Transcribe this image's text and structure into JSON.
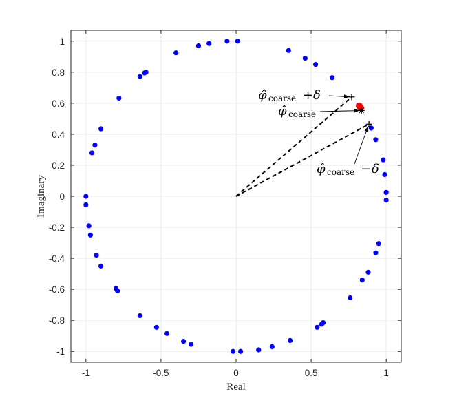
{
  "chart_data": {
    "type": "scatter",
    "title": "",
    "xlabel": "Real",
    "ylabel": "Imaginary",
    "xlim": [
      -1.1,
      1.1
    ],
    "ylim": [
      -1.07,
      1.07
    ],
    "grid": true,
    "xticks": [
      -1,
      -0.5,
      0,
      0.5,
      1
    ],
    "xtick_labels": [
      "-1",
      "-0.5",
      "0",
      "0.5",
      "1"
    ],
    "yticks": [
      1,
      0.8,
      0.6,
      0.4,
      0.2,
      0,
      -0.2,
      -0.4,
      -0.6,
      -0.8,
      -1
    ],
    "ytick_labels": [
      "1",
      "0.8",
      "0.6",
      "0.4",
      "0.2",
      "0",
      "-0.2",
      "-0.4",
      "-0.6",
      "-0.8",
      "-1"
    ],
    "colors": {
      "points": "#0000ff",
      "highlight": "#ff0000",
      "lines": "#000000",
      "grid": "#ebebeb",
      "axes": "#262626"
    },
    "series": [
      {
        "color": "#0000ff",
        "points": [
          [
            -0.06,
            1.0
          ],
          [
            0.01,
            1.0
          ],
          [
            -0.18,
            0.985
          ],
          [
            -0.25,
            0.97
          ],
          [
            -0.4,
            0.925
          ],
          [
            -0.6,
            0.8
          ],
          [
            -0.61,
            0.795
          ],
          [
            -0.64,
            0.772
          ],
          [
            -0.78,
            0.633
          ],
          [
            -0.9,
            0.435
          ],
          [
            -0.94,
            0.33
          ],
          [
            -0.96,
            0.28
          ],
          [
            -1.0,
            0.0
          ],
          [
            -1.0,
            -0.055
          ],
          [
            -0.98,
            -0.19
          ],
          [
            -0.97,
            -0.25
          ],
          [
            -0.93,
            -0.38
          ],
          [
            -0.9,
            -0.45
          ],
          [
            -0.8,
            -0.595
          ],
          [
            -0.79,
            -0.61
          ],
          [
            -0.64,
            -0.77
          ],
          [
            -0.53,
            -0.845
          ],
          [
            -0.46,
            -0.885
          ],
          [
            -0.35,
            -0.935
          ],
          [
            -0.3,
            -0.955
          ],
          [
            -0.02,
            -1.0
          ],
          [
            0.03,
            -1.0
          ],
          [
            0.15,
            -0.99
          ],
          [
            0.24,
            -0.97
          ],
          [
            0.36,
            -0.93
          ],
          [
            0.54,
            -0.845
          ],
          [
            0.57,
            -0.825
          ],
          [
            0.58,
            -0.815
          ],
          [
            0.76,
            -0.655
          ],
          [
            0.84,
            -0.54
          ],
          [
            0.88,
            -0.49
          ],
          [
            0.93,
            -0.365
          ],
          [
            0.95,
            -0.305
          ],
          [
            0.99,
            0.14
          ],
          [
            1.0,
            0.025
          ],
          [
            1.0,
            -0.025
          ],
          [
            0.98,
            0.235
          ],
          [
            0.93,
            0.365
          ],
          [
            0.9,
            0.44
          ],
          [
            0.64,
            0.765
          ],
          [
            0.53,
            0.85
          ],
          [
            0.46,
            0.89
          ],
          [
            0.35,
            0.94
          ]
        ]
      },
      {
        "color": "#ff0000",
        "points": [
          [
            0.82,
            0.583
          ],
          [
            0.83,
            0.57
          ]
        ]
      }
    ],
    "lines": [
      {
        "from": [
          0,
          0
        ],
        "to": [
          0.77,
          0.64
        ]
      },
      {
        "from": [
          0,
          0
        ],
        "to": [
          0.885,
          0.465
        ]
      }
    ],
    "markers": [
      {
        "symbol": "+",
        "at": [
          0.77,
          0.64
        ]
      },
      {
        "symbol": "+",
        "at": [
          0.885,
          0.465
        ]
      },
      {
        "symbol": "*",
        "at": [
          0.835,
          0.553
        ]
      }
    ],
    "annotations": [
      {
        "text": "φ̂coarse + δ",
        "target": [
          0.77,
          0.64
        ]
      },
      {
        "text": "φ̂coarse",
        "target": [
          0.835,
          0.553
        ]
      },
      {
        "text": "φ̂coarse − δ",
        "target": [
          0.885,
          0.465
        ]
      }
    ]
  }
}
